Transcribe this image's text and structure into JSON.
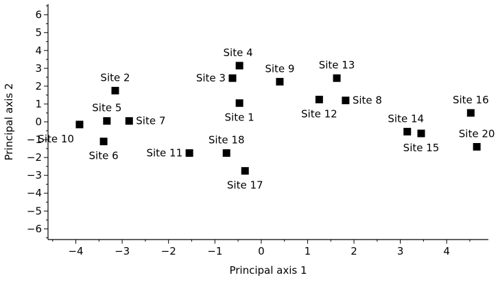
{
  "chart_data": {
    "type": "scatter",
    "title": "",
    "xlabel": "Principal axis 1",
    "ylabel": "Principal axis 2",
    "xlim": [
      -4.6,
      4.9
    ],
    "ylim": [
      -6.6,
      6.6
    ],
    "xticks": [
      -4,
      -3,
      -2,
      -1,
      0,
      1,
      2,
      3,
      4
    ],
    "yticks": [
      -6,
      -5,
      -4,
      -3,
      -2,
      -1,
      0,
      1,
      2,
      3,
      4,
      5,
      6
    ],
    "grid": false,
    "legend": "none",
    "marker_color": "#000000",
    "points": [
      {
        "label": "Site 1",
        "x": -0.47,
        "y": 1.05,
        "label_pos": "below"
      },
      {
        "label": "Site 2",
        "x": -3.15,
        "y": 1.75,
        "label_pos": "above"
      },
      {
        "label": "Site 3",
        "x": -0.62,
        "y": 2.45,
        "label_pos": "left"
      },
      {
        "label": "Site 4",
        "x": -0.47,
        "y": 3.15,
        "label_pos": "above-left"
      },
      {
        "label": "Site 5",
        "x": -3.33,
        "y": 0.05,
        "label_pos": "above"
      },
      {
        "label": "Site 6",
        "x": -3.4,
        "y": -1.1,
        "label_pos": "below"
      },
      {
        "label": "Site 7",
        "x": -2.85,
        "y": 0.05,
        "label_pos": "right"
      },
      {
        "label": "Site 8",
        "x": 1.82,
        "y": 1.2,
        "label_pos": "right"
      },
      {
        "label": "Site 9",
        "x": 0.4,
        "y": 2.25,
        "label_pos": "above"
      },
      {
        "label": "Site 10",
        "x": -3.92,
        "y": -0.15,
        "label_pos": "below-left"
      },
      {
        "label": "Site 11",
        "x": -1.55,
        "y": -1.75,
        "label_pos": "left"
      },
      {
        "label": "Site 12",
        "x": 1.25,
        "y": 1.25,
        "label_pos": "below"
      },
      {
        "label": "Site 13",
        "x": 1.63,
        "y": 2.45,
        "label_pos": "above"
      },
      {
        "label": "Site 14",
        "x": 3.15,
        "y": -0.55,
        "label_pos": "above-left"
      },
      {
        "label": "Site 15",
        "x": 3.45,
        "y": -0.65,
        "label_pos": "below"
      },
      {
        "label": "Site 16",
        "x": 4.52,
        "y": 0.5,
        "label_pos": "above"
      },
      {
        "label": "Site 17",
        "x": -0.35,
        "y": -2.75,
        "label_pos": "below"
      },
      {
        "label": "Site 18",
        "x": -0.75,
        "y": -1.75,
        "label_pos": "above"
      },
      {
        "label": "Site 20",
        "x": 4.65,
        "y": -1.4,
        "label_pos": "above"
      }
    ]
  }
}
